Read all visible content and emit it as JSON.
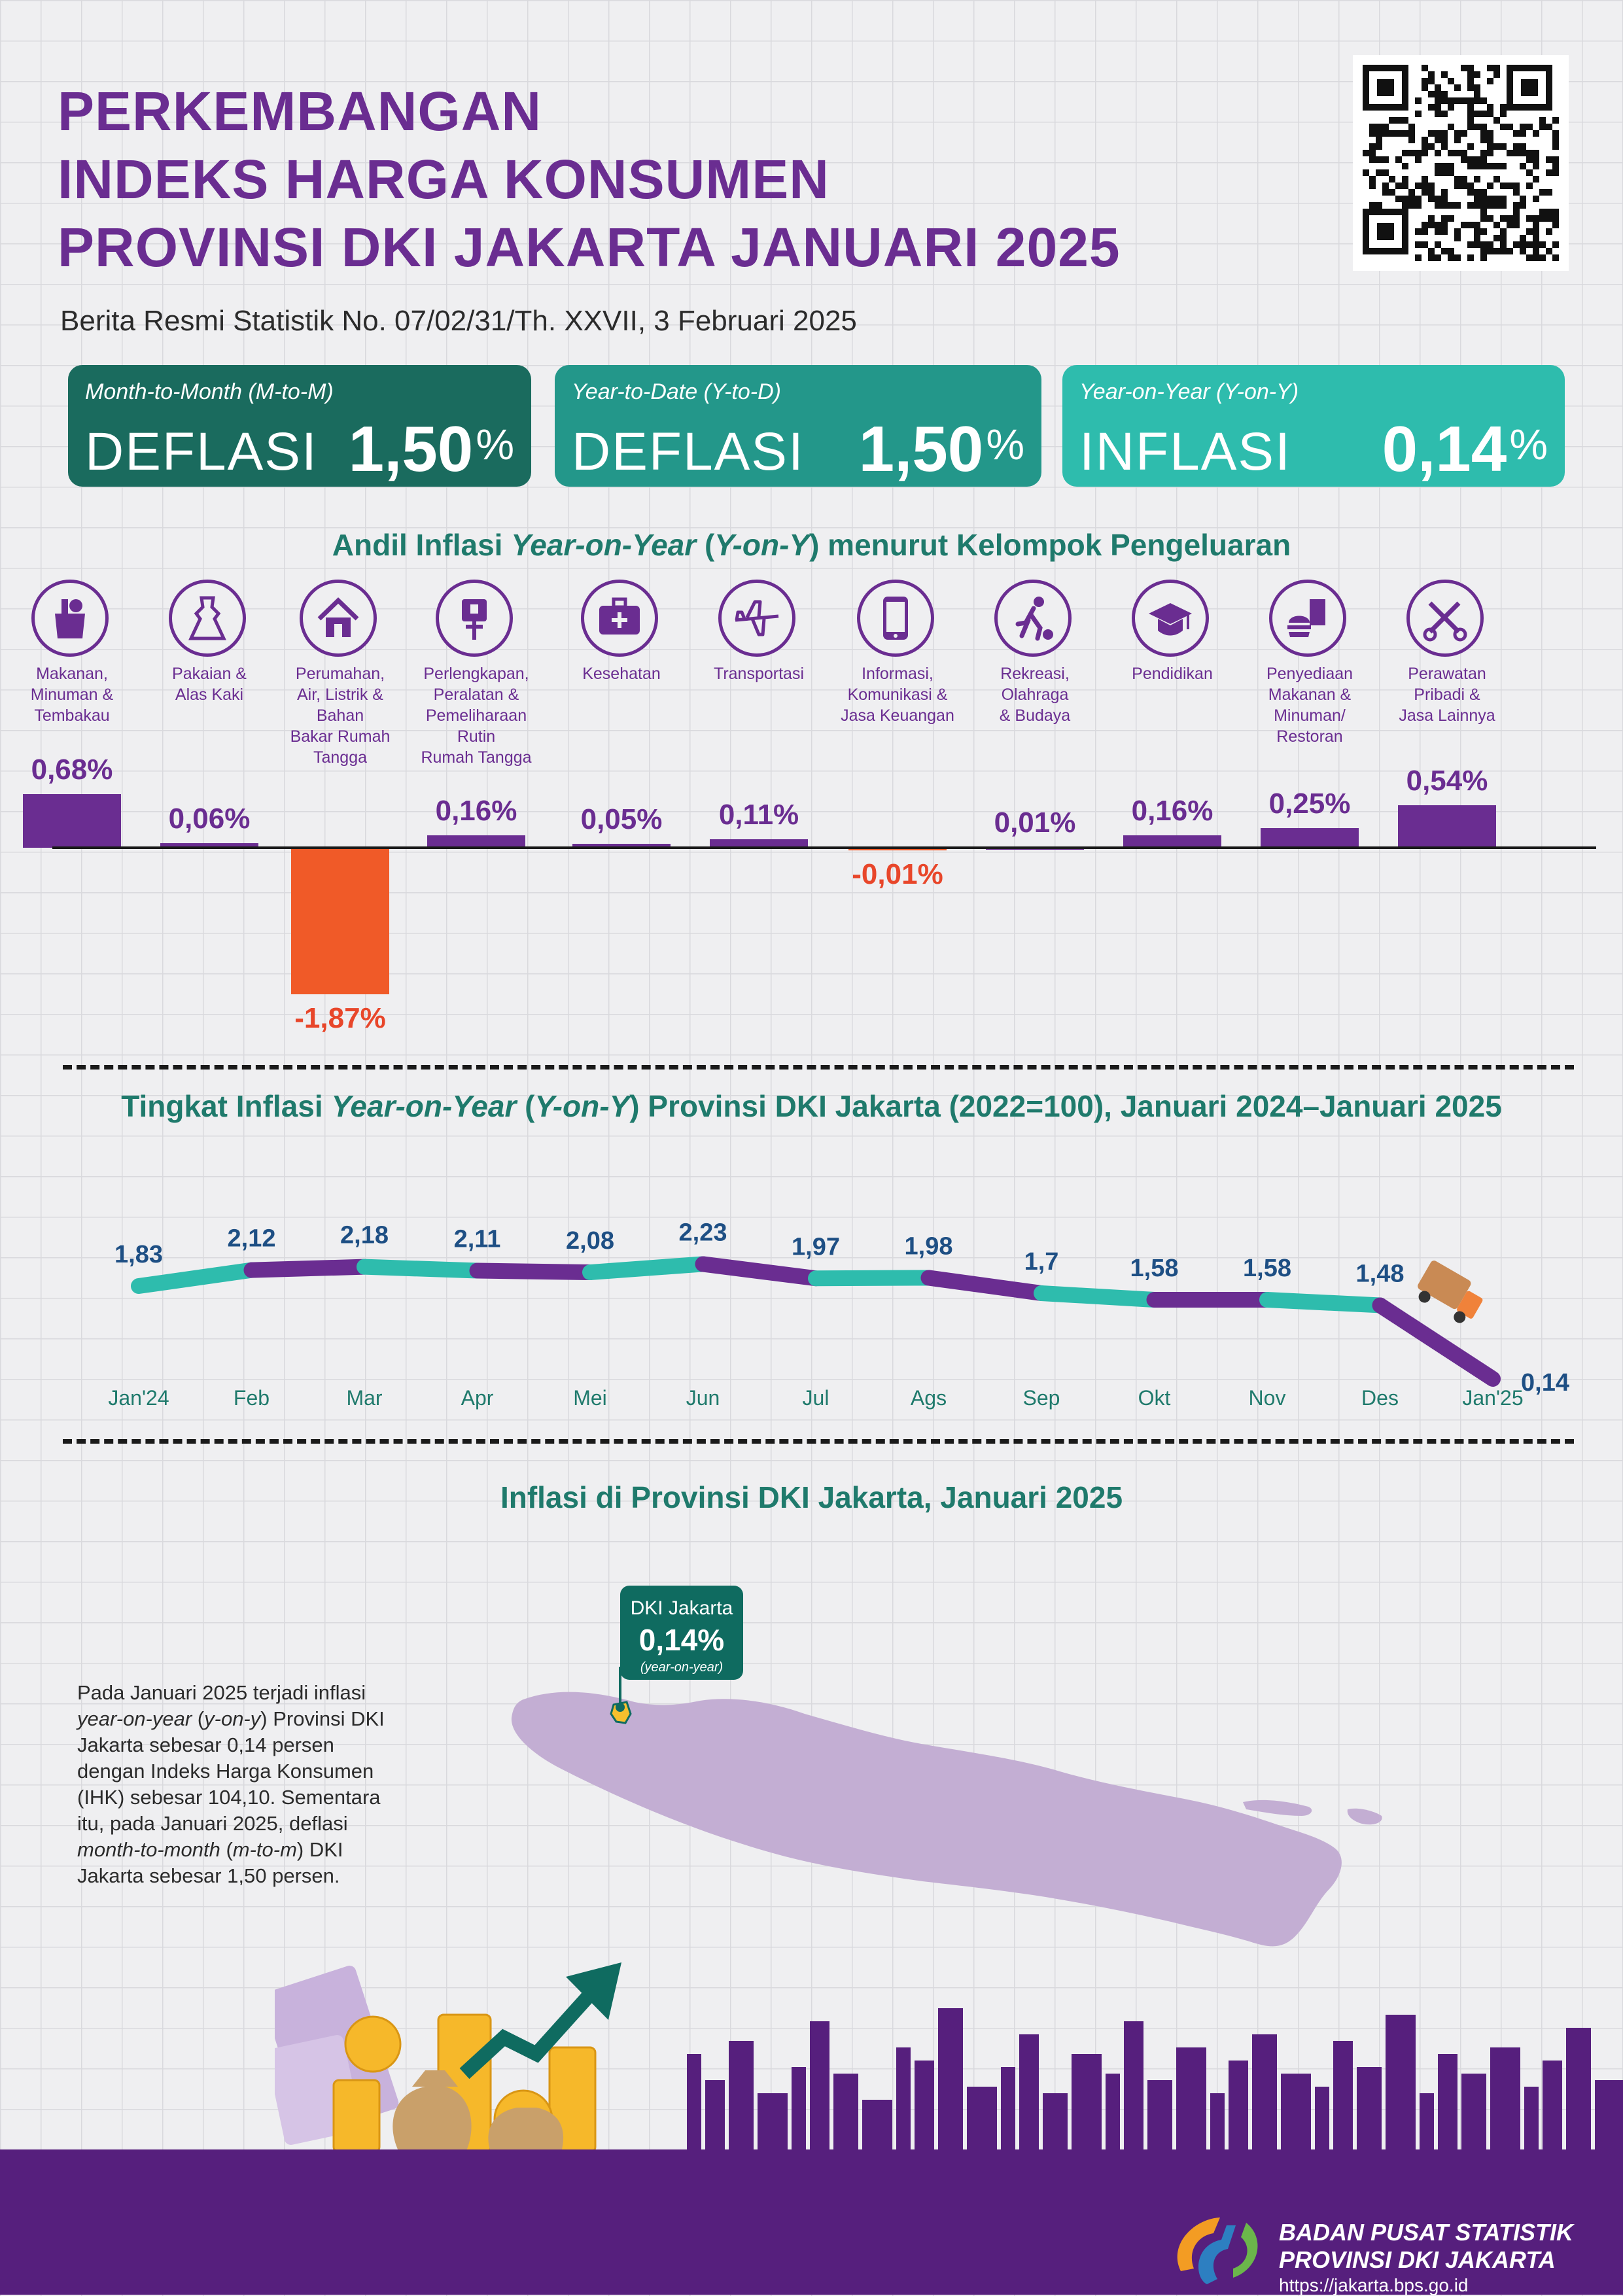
{
  "header": {
    "title_lines": [
      "PERKEMBANGAN",
      "INDEKS HARGA KONSUMEN",
      "PROVINSI DKI JAKARTA JANUARI 2025"
    ],
    "subtitle": "Berita Resmi Statistik No. 07/02/31/Th. XXVII, 3 Februari 2025"
  },
  "cards": [
    {
      "label": "Month-to-Month (M-to-M)",
      "kind": "DEFLASI",
      "value": "1,50",
      "pct": "%",
      "color": "#1a6b5e"
    },
    {
      "label": "Year-to-Date (Y-to-D)",
      "kind": "DEFLASI",
      "value": "1,50",
      "pct": "%",
      "color": "#23978a"
    },
    {
      "label": "Year-on-Year (Y-on-Y)",
      "kind": "INFLASI",
      "value": "0,14",
      "pct": "%",
      "color": "#2ebcad"
    }
  ],
  "andil": {
    "title_pre": "Andil Inflasi ",
    "title_it": "Year-on-Year",
    "title_mid": " (",
    "title_it2": "Y-on-Y",
    "title_post": ") menurut Kelompok Pengeluaran",
    "categories": [
      {
        "name": "Makanan,\nMinuman &\nTembakau",
        "value": 0.68,
        "label": "0,68%",
        "icon": "grocery-bag-icon"
      },
      {
        "name": "Pakaian &\nAlas Kaki",
        "value": 0.06,
        "label": "0,06%",
        "icon": "dress-icon"
      },
      {
        "name": "Perumahan,\nAir, Listrik &\nBahan\nBakar Rumah\nTangga",
        "value": -1.87,
        "label": "-1,87%",
        "icon": "house-icon"
      },
      {
        "name": "Perlengkapan,\nPeralatan &\nPemeliharaan\nRutin\nRumah Tangga",
        "value": 0.16,
        "label": "0,16%",
        "icon": "plug-icon"
      },
      {
        "name": "Kesehatan",
        "value": 0.05,
        "label": "0,05%",
        "icon": "medical-kit-icon"
      },
      {
        "name": "Transportasi",
        "value": 0.11,
        "label": "0,11%",
        "icon": "airplane-icon"
      },
      {
        "name": "Informasi,\nKomunikasi &\nJasa Keuangan",
        "value": -0.01,
        "label": "-0,01%",
        "icon": "smartphone-icon"
      },
      {
        "name": "Rekreasi,\nOlahraga\n& Budaya",
        "value": 0.01,
        "label": "0,01%",
        "icon": "soccer-player-icon"
      },
      {
        "name": "Pendidikan",
        "value": 0.16,
        "label": "0,16%",
        "icon": "graduation-cap-icon"
      },
      {
        "name": "Penyediaan\nMakanan &\nMinuman/\nRestoran",
        "value": 0.25,
        "label": "0,25%",
        "icon": "fast-food-icon"
      },
      {
        "name": "Perawatan\nPribadi &\nJasa Lainnya",
        "value": 0.54,
        "label": "0,54%",
        "icon": "scissors-comb-icon"
      }
    ]
  },
  "trend": {
    "title_pre": "Tingkat Inflasi ",
    "title_it": "Year-on-Year",
    "title_mid": " (",
    "title_it2": "Y-on-Y",
    "title_post": ") Provinsi DKI Jakarta (2022=100), Januari 2024–Januari 2025"
  },
  "chart_data": {
    "type": "line",
    "x": [
      "Jan'24",
      "Feb",
      "Mar",
      "Apr",
      "Mei",
      "Jun",
      "Jul",
      "Ags",
      "Sep",
      "Okt",
      "Nov",
      "Des",
      "Jan'25"
    ],
    "series": [
      {
        "values": [
          1.83,
          2.12,
          2.18,
          2.11,
          2.08,
          2.23,
          1.97,
          1.98,
          1.7,
          1.58,
          1.58,
          1.48,
          0.14
        ]
      }
    ],
    "labels": [
      "1,83",
      "2,12",
      "2,18",
      "2,11",
      "2,08",
      "2,23",
      "1,97",
      "1,98",
      "1,7",
      "1,58",
      "1,58",
      "1,48",
      "0,14"
    ],
    "segment_colors": [
      "#2ebcad",
      "#6a2d91"
    ]
  },
  "map_section": {
    "title": "Inflasi di Provinsi DKI Jakarta, Januari 2025",
    "callout_region": "DKI Jakarta",
    "callout_value": "0,14%",
    "callout_note": "(year-on-year)",
    "description_html": "Pada Januari 2025 terjadi inflasi <i>year-on-year</i> (<i>y-on-y</i>) Provinsi DKI Jakarta sebesar 0,14 persen dengan Indeks Harga Konsumen (IHK) sebesar 104,10. Sementara itu, pada Januari 2025, deflasi <i>month-to-month</i> (<i>m-to-m</i>) DKI Jakarta sebesar 1,50 persen."
  },
  "footer": {
    "org_line1": "BADAN PUSAT STATISTIK",
    "org_line2": "PROVINSI DKI JAKARTA",
    "url": "https://jakarta.bps.go.id"
  }
}
